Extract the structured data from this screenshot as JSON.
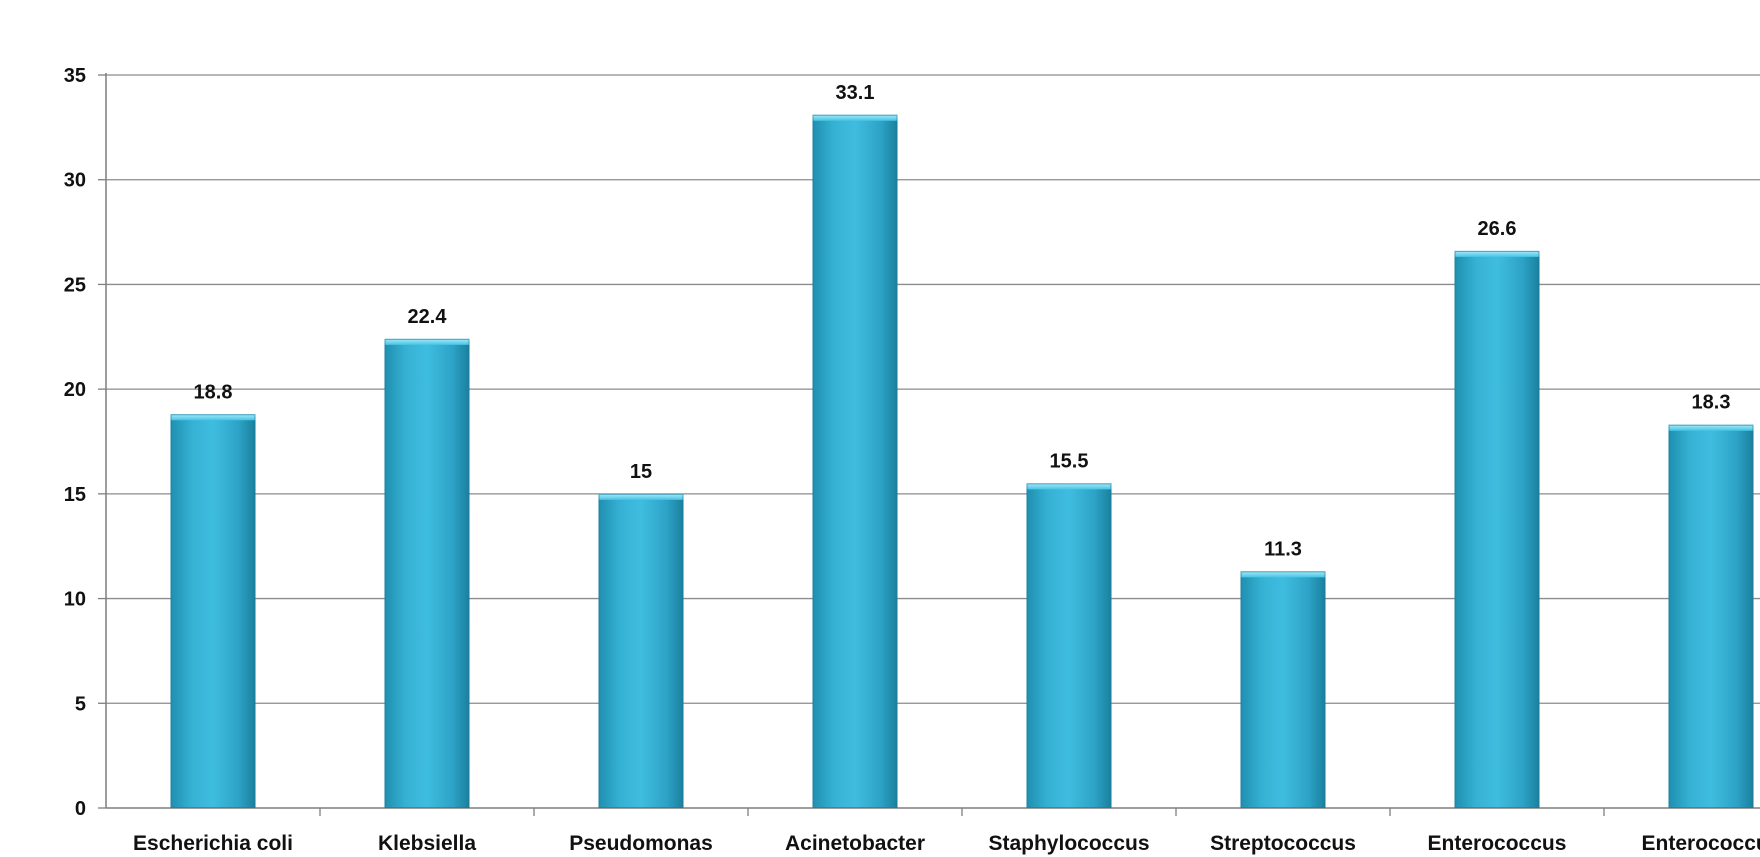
{
  "chart_data": {
    "type": "bar",
    "title": "",
    "xlabel": "",
    "ylabel": "",
    "categories": [
      "Escherichia coli",
      "Klebsiella",
      "Pseudomonas",
      "Acinetobacter",
      "Staphylococcus",
      "Streptococcus",
      "Enterococcus",
      "Enterococcus"
    ],
    "values": [
      18.8,
      22.4,
      15,
      33.1,
      15.5,
      11.3,
      26.6,
      18.3
    ],
    "value_labels": [
      "18.8",
      "22.4",
      "15",
      "33.1",
      "15.5",
      "11.3",
      "26.6",
      "18.3"
    ],
    "ylim": [
      0,
      35
    ],
    "yticks": [
      0,
      5,
      10,
      15,
      20,
      25,
      30,
      35
    ],
    "grid": true,
    "legend": "none",
    "colors": {
      "bar": "#35b1d3",
      "bar_dark": "#1f8fb0",
      "bar_top": "#7fdcf3",
      "grid": "#8c8c8c",
      "axis": "#7f7f7f"
    }
  }
}
